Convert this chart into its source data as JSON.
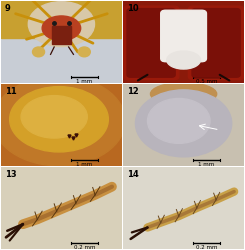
{
  "figure_labels": [
    "9",
    "10",
    "11",
    "12",
    "13",
    "14"
  ],
  "scale_bars": [
    "1 mm",
    "0.5 mm",
    "1 mm",
    "1 mm",
    "0.2 mm",
    "0.2 mm"
  ],
  "bg_color": "#ffffff",
  "label_color": "#000000",
  "label_fontsize": 6,
  "scalebar_fontsize": 4.0,
  "fig_width": 2.45,
  "fig_height": 2.5,
  "panel9_bg": "#c8cdd5",
  "panel9_body": "#b84020",
  "panel9_legs": "#c8900a",
  "panel9_palp": "#d4a830",
  "panel10_bg": "#8b1a0a",
  "panel10_center": "#f0ece8",
  "panel10_dark": "#5a0a05",
  "panel11_bg": "#c07830",
  "panel11_carapace": "#d4a030",
  "panel11_edge": "#c07028",
  "panel12_bg": "#c0b8a8",
  "panel12_abdomen": "#b0acb0",
  "panel12_base": "#c09060",
  "panel13_bg": "#d8d0ba",
  "panel13_seg": "#c89040",
  "panel13_claw": "#2a1005",
  "panel14_bg": "#dcd8cc",
  "panel14_seg": "#c8a048",
  "panel14_claw": "#2a1005"
}
